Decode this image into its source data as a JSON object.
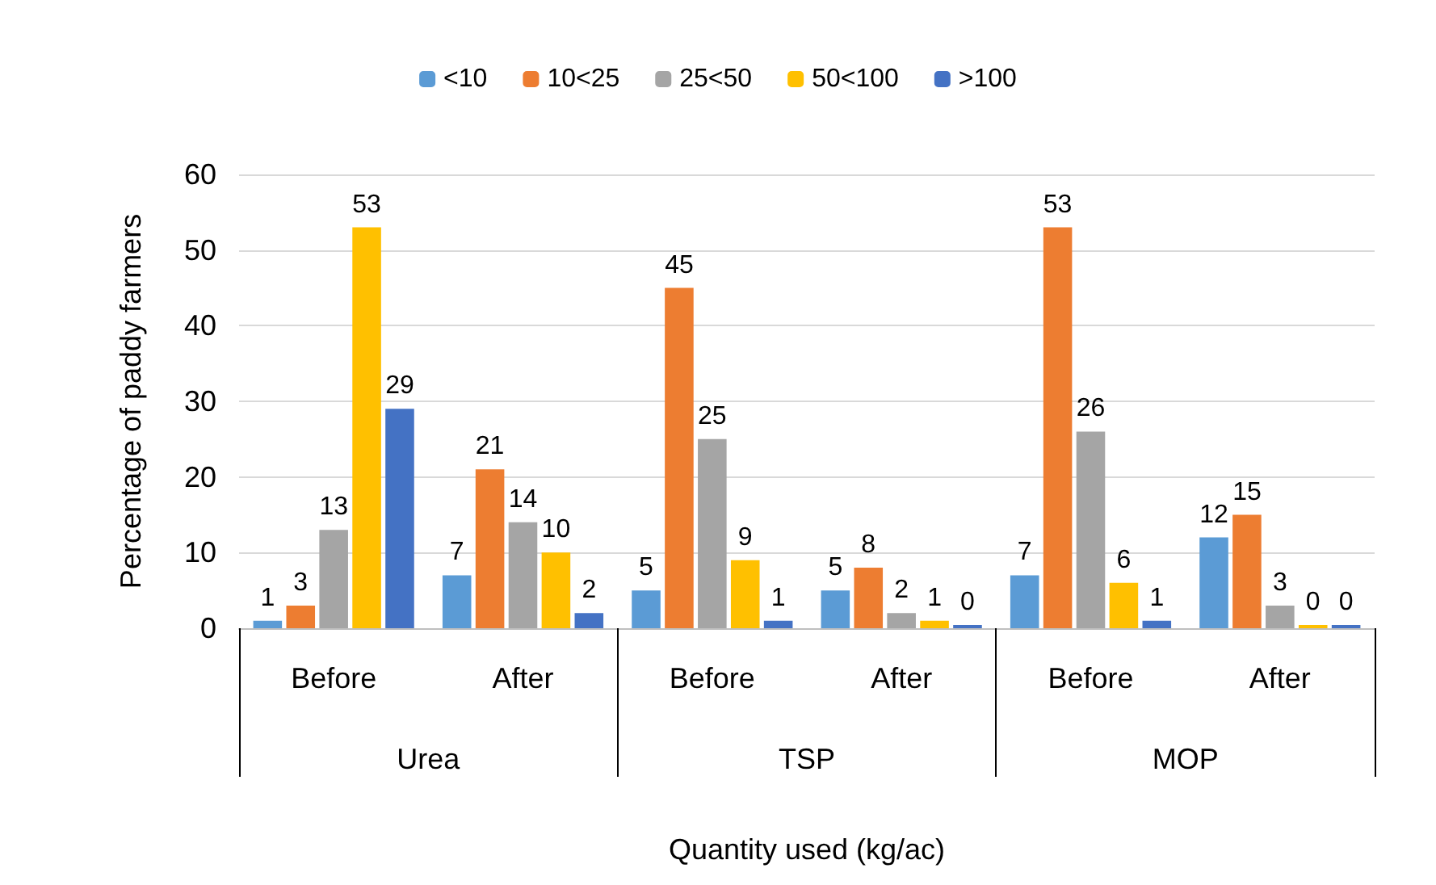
{
  "chart_data": {
    "type": "bar",
    "categories": [
      "Before",
      "After",
      "Before",
      "After",
      "Before",
      "After"
    ],
    "series": [
      {
        "name": "<10",
        "color": "#5b9bd5",
        "values": [
          1,
          7,
          5,
          5,
          7,
          12
        ]
      },
      {
        "name": "10<25",
        "color": "#ed7d31",
        "values": [
          3,
          21,
          45,
          8,
          53,
          15
        ]
      },
      {
        "name": "25<50",
        "color": "#a5a5a5",
        "values": [
          13,
          14,
          25,
          2,
          26,
          3
        ]
      },
      {
        "name": "50<100",
        "color": "#ffc000",
        "values": [
          53,
          10,
          9,
          1,
          6,
          0
        ]
      },
      {
        "name": ">100",
        "color": "#4472c4",
        "values": [
          29,
          2,
          1,
          0,
          1,
          0
        ]
      }
    ],
    "annotations": [
      "Urea",
      "TSP",
      "MOP"
    ],
    "ylabel": "Percentage of paddy farmers",
    "xlabel": "Quantity used (kg/ac)",
    "ylim": [
      0,
      60
    ],
    "yticks": [
      0,
      10,
      20,
      30,
      40,
      50,
      60
    ],
    "grid": "y",
    "legend": "top",
    "data_labels": true
  }
}
